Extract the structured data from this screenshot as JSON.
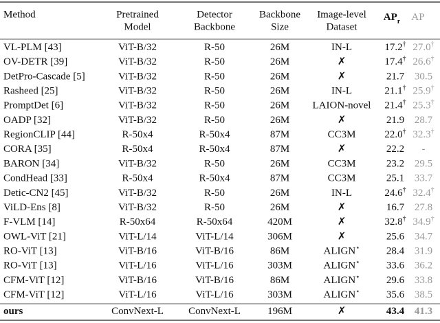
{
  "table": {
    "header": [
      {
        "lines": [
          "Method"
        ]
      },
      {
        "lines": [
          "Pretrained",
          "Model"
        ]
      },
      {
        "lines": [
          "Detector",
          "Backbone"
        ]
      },
      {
        "lines": [
          "Backbone",
          "Size"
        ]
      },
      {
        "lines": [
          "Image-level",
          "Dataset"
        ]
      },
      {
        "text": "AP",
        "sub": "r"
      },
      {
        "text": "AP"
      }
    ],
    "rows": [
      [
        "VL-PLM [43]",
        "ViT-B/32",
        "R-50",
        "26M",
        "IN-L",
        {
          "text": "17.2",
          "sup": "†"
        },
        {
          "text": "27.0",
          "sup": "†"
        }
      ],
      [
        "OV-DETR [39]",
        "ViT-B/32",
        "R-50",
        "26M",
        "✗",
        {
          "text": "17.4",
          "sup": "†"
        },
        {
          "text": "26.6",
          "sup": "†"
        }
      ],
      [
        "DetPro-Cascade [5]",
        "ViT-B/32",
        "R-50",
        "26M",
        "✗",
        "21.7",
        "30.5"
      ],
      [
        "Rasheed [25]",
        "ViT-B/32",
        "R-50",
        "26M",
        "IN-L",
        {
          "text": "21.1",
          "sup": "†"
        },
        {
          "text": "25.9",
          "sup": "†"
        }
      ],
      [
        "PromptDet [6]",
        "ViT-B/32",
        "R-50",
        "26M",
        "LAION-novel",
        {
          "text": "21.4",
          "sup": "†"
        },
        {
          "text": "25.3",
          "sup": "†"
        }
      ],
      [
        "OADP [32]",
        "ViT-B/32",
        "R-50",
        "26M",
        "✗",
        "21.9",
        "28.7"
      ],
      [
        "RegionCLIP [44]",
        "R-50x4",
        "R-50x4",
        "87M",
        "CC3M",
        {
          "text": "22.0",
          "sup": "†"
        },
        {
          "text": "32.3",
          "sup": "†"
        }
      ],
      [
        "CORA [35]",
        "R-50x4",
        "R-50x4",
        "87M",
        "✗",
        "22.2",
        "-"
      ],
      [
        "BARON [34]",
        "ViT-B/32",
        "R-50",
        "26M",
        "CC3M",
        "23.2",
        "29.5"
      ],
      [
        "CondHead [33]",
        "R-50x4",
        "R-50x4",
        "87M",
        "CC3M",
        "25.1",
        "33.7"
      ],
      [
        "Detic-CN2 [45]",
        "ViT-B/32",
        "R-50",
        "26M",
        "IN-L",
        {
          "text": "24.6",
          "sup": "†"
        },
        {
          "text": "32.4",
          "sup": "†"
        }
      ],
      [
        "ViLD-Ens [8]",
        "ViT-B/32",
        "R-50",
        "26M",
        "✗",
        "16.7",
        "27.8"
      ],
      [
        "F-VLM [14]",
        "R-50x64",
        "R-50x64",
        "420M",
        "✗",
        {
          "text": "32.8",
          "sup": "†"
        },
        {
          "text": "34.9",
          "sup": "†"
        }
      ],
      [
        "OWL-ViT [21]",
        "ViT-L/14",
        "ViT-L/14",
        "306M",
        "✗",
        "25.6",
        "34.7"
      ],
      [
        "RO-ViT [13]",
        "ViT-B/16",
        "ViT-B/16",
        "86M",
        {
          "text": "ALIGN",
          "sup": "⋆"
        },
        "28.4",
        "31.9"
      ],
      [
        "RO-ViT [13]",
        "ViT-L/16",
        "ViT-L/16",
        "303M",
        {
          "text": "ALIGN",
          "sup": "⋆"
        },
        "33.6",
        "36.2"
      ],
      [
        "CFM-ViT [12]",
        "ViT-B/16",
        "ViT-B/16",
        "86M",
        {
          "text": "ALIGN",
          "sup": "⋆"
        },
        "29.6",
        "33.8"
      ],
      [
        "CFM-ViT [12]",
        "ViT-L/16",
        "ViT-L/16",
        "303M",
        {
          "text": "ALIGN",
          "sup": "⋆"
        },
        "35.6",
        "38.5"
      ]
    ],
    "final_row": [
      "ours",
      "ConvNext-L",
      "ConvNext-L",
      "196M",
      "✗",
      "43.4",
      "41.3"
    ]
  }
}
